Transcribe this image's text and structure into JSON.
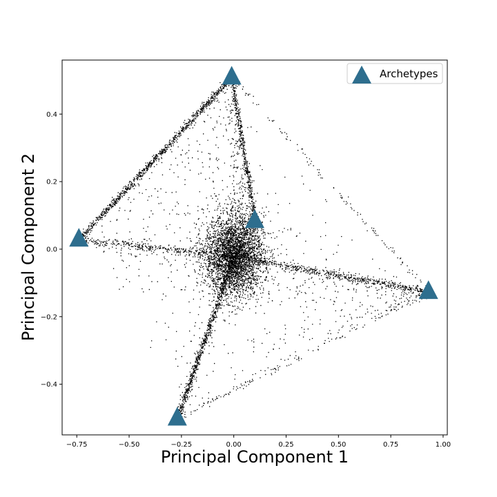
{
  "chart_data": {
    "type": "scatter",
    "title": "",
    "xlabel": "Principal Component 1",
    "ylabel": "Principal Component 2",
    "xlim": [
      -0.82,
      1.02
    ],
    "ylim": [
      -0.55,
      0.56
    ],
    "xticks": [
      -0.75,
      -0.5,
      -0.25,
      0.0,
      0.25,
      0.5,
      0.75,
      1.0
    ],
    "xtick_labels": [
      "−0.75",
      "−0.50",
      "−0.25",
      "0.00",
      "0.25",
      "0.50",
      "0.75",
      "1.00"
    ],
    "yticks": [
      -0.4,
      -0.2,
      0.0,
      0.2,
      0.4
    ],
    "ytick_labels": [
      "−0.4",
      "−0.2",
      "0.0",
      "0.2",
      "0.4"
    ],
    "grid": false,
    "legend": {
      "position": "top-right",
      "entries": [
        "Archetypes"
      ]
    },
    "series": [
      {
        "name": "Archetypes",
        "marker": "triangle",
        "color": "#2e6e8e",
        "points": [
          {
            "x": -0.01,
            "y": 0.51
          },
          {
            "x": -0.74,
            "y": 0.03
          },
          {
            "x": 0.1,
            "y": 0.085
          },
          {
            "x": 0.93,
            "y": -0.125
          },
          {
            "x": -0.27,
            "y": -0.5
          }
        ]
      },
      {
        "marker": "dot",
        "color": "#000000",
        "description_points": "dense cloud of samples spanning the convex hull of the archetypes, concentrated near (0.0, -0.02) and along edges"
      }
    ]
  }
}
